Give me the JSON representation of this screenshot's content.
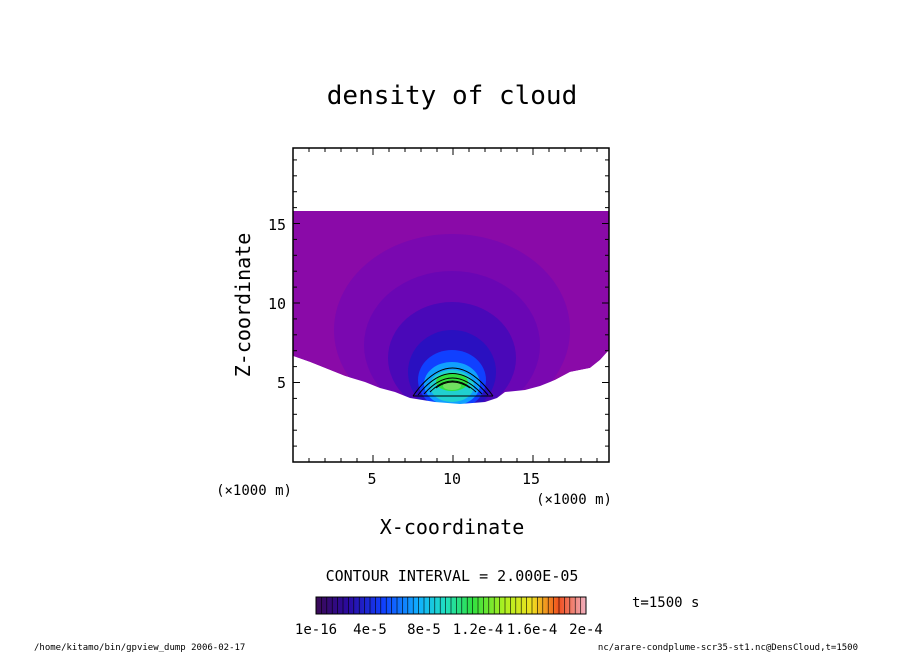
{
  "chart_data": {
    "type": "heatmap",
    "title": "density of cloud",
    "xlabel": "X-coordinate",
    "ylabel": "Z-coordinate",
    "x_unit": "(×1000 m)",
    "y_unit": "(×1000 m)",
    "xlim": [
      0,
      19.75
    ],
    "ylim": [
      0,
      19.75
    ],
    "x_ticks": [
      "5",
      "10",
      "15"
    ],
    "y_ticks": [
      "5",
      "10",
      "15"
    ],
    "contour_interval": "CONTOUR INTERVAL = 2.000E-05",
    "colorbar_labels": [
      "1e-16",
      "4e-5",
      "8e-5",
      "1.2e-4",
      "1.6e-4",
      "2e-4"
    ],
    "colorbar_range": [
      0,
      0.0002
    ],
    "time_label": "t=1500 s",
    "cloud_top_z": 15.8,
    "cloud_base_z": 4.0,
    "peak_center_x": 10,
    "peak_center_z": 5.0
  },
  "footer": {
    "left": "/home/kitamo/bin/gpview_dump  2006-02-17",
    "right": "nc/arare-condplume-scr35-st1.nc@DensCloud,t=1500"
  }
}
